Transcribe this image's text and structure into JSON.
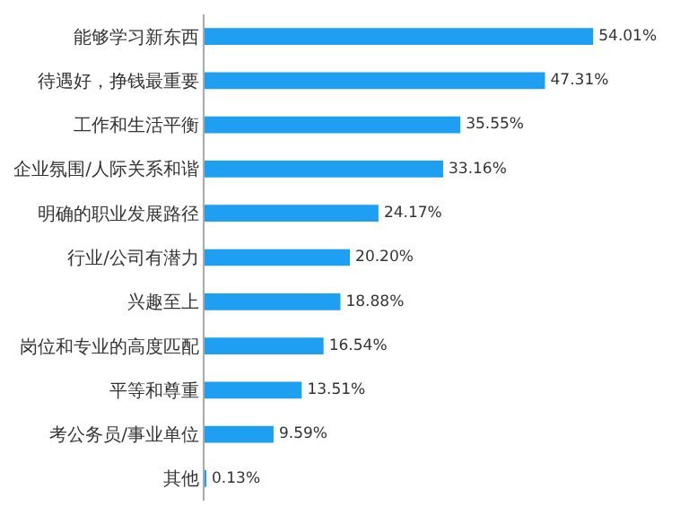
{
  "chart_data": {
    "type": "bar",
    "orientation": "horizontal",
    "categories": [
      "能够学习新东西",
      "待遇好，挣钱最重要",
      "工作和生活平衡",
      "企业氛围/人际关系和谐",
      "明确的职业发展路径",
      "行业/公司有潜力",
      "兴趣至上",
      "岗位和专业的高度匹配",
      "平等和尊重",
      "考公务员/事业单位",
      "其他"
    ],
    "values": [
      54.01,
      47.31,
      35.55,
      33.16,
      24.17,
      20.2,
      18.88,
      16.54,
      13.51,
      9.59,
      0.13
    ],
    "value_labels": [
      "54.01%",
      "47.31%",
      "35.55%",
      "33.16%",
      "24.17%",
      "20.20%",
      "18.88%",
      "16.54%",
      "13.51%",
      "9.59%",
      "0.13%"
    ],
    "color": "#1e9ff2",
    "tick_labels": "y"
  }
}
